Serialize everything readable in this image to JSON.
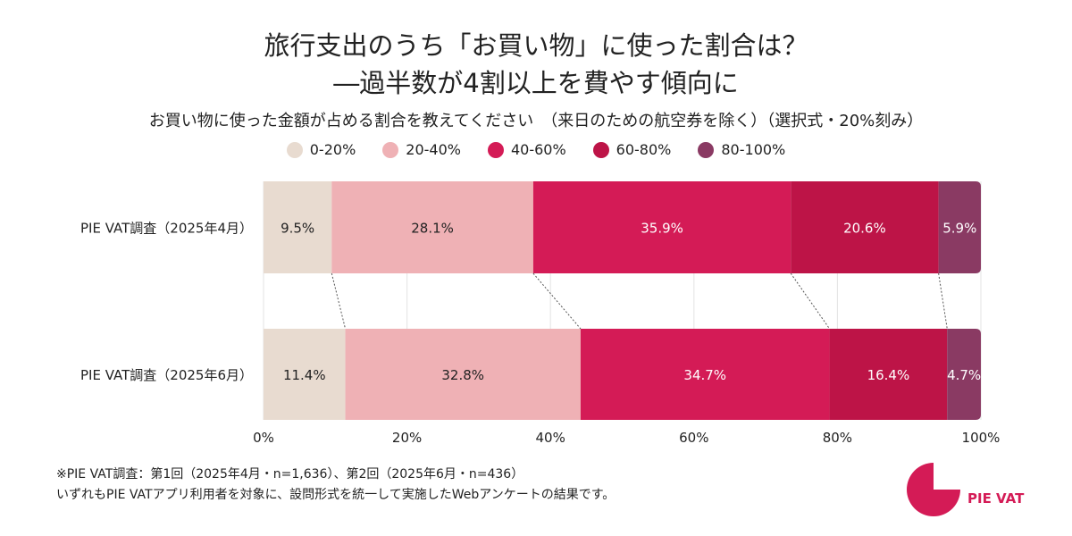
{
  "chart_data": {
    "type": "bar",
    "orientation": "horizontal-stacked",
    "title": "旅行支出のうち「お買い物」に使った割合は？",
    "title_line2": "―過半数が4割以上を費やす傾向に",
    "subtitle": "お買い物に使った金額が占める割合を教えてください　（来日のための航空券を除く）（選択式・20%刻み）",
    "categories": [
      "PIE VAT調査（2025年4月）",
      "PIE VAT調査（2025年6月）"
    ],
    "series": [
      {
        "name": "0-20%",
        "color": "#e8dbd0",
        "label_color": "#222222",
        "values": [
          9.5,
          11.4
        ]
      },
      {
        "name": "20-40%",
        "color": "#efb1b5",
        "label_color": "#222222",
        "values": [
          28.1,
          32.8
        ]
      },
      {
        "name": "40-60%",
        "color": "#d41b56",
        "label_color": "#ffffff",
        "values": [
          35.9,
          34.7
        ]
      },
      {
        "name": "60-80%",
        "color": "#bd1447",
        "label_color": "#ffffff",
        "values": [
          20.6,
          16.4
        ]
      },
      {
        "name": "80-100%",
        "color": "#8a3a63",
        "label_color": "#ffffff",
        "values": [
          5.9,
          4.7
        ]
      }
    ],
    "xlim": [
      0,
      100
    ],
    "xticks": [
      "0%",
      "20%",
      "40%",
      "60%",
      "80%",
      "100%"
    ],
    "grid": true,
    "legend_position": "top-center"
  },
  "notes": [
    "※PIE VAT調査：第1回（2025年4月・n=1,636）、第2回（2025年6月・n=436）",
    "いずれもPIE VATアプリ利用者を対象に、設問形式を統一して実施したWebアンケートの結果です。"
  ],
  "logo": {
    "text": "PIE VAT",
    "color": "#d41b56"
  }
}
